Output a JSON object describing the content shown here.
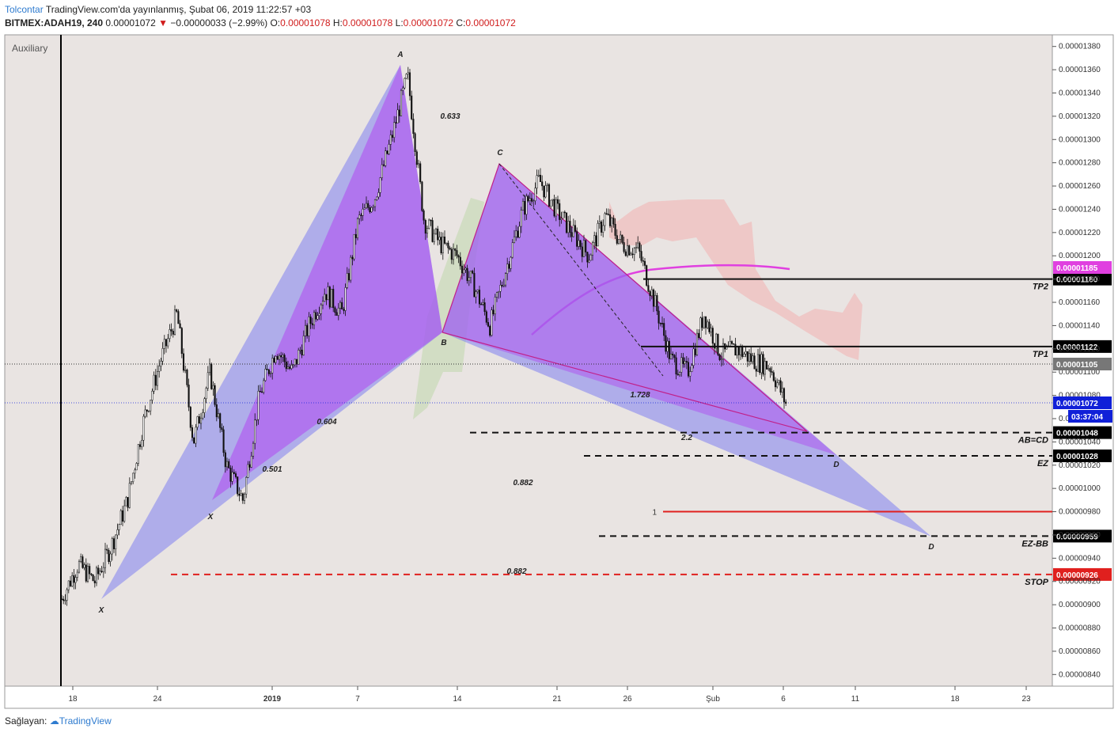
{
  "header": {
    "author": "Tolcontar",
    "published": "TradingView.com'da yayınlanmış, Şubat 06, 2019 11:22:57 +03",
    "symbol": "BITMEX:ADAH19, 240",
    "last": "0.00001072",
    "change_arrow": "▼",
    "change": "−0.00000033 (−2.99%)",
    "o_label": "O:",
    "o": "0.00001078",
    "h_label": "H:",
    "h": "0.00001078",
    "l_label": "L:",
    "l": "0.00001072",
    "c_label": "C:",
    "c": "0.00001072"
  },
  "pane_label": "Auxiliary",
  "footer": {
    "prefix": "Sağlayan:",
    "brand": "TradingView"
  },
  "chart_data": {
    "type": "candlestick",
    "ylim": [
      8.3e-06,
      1.39e-05
    ],
    "yticks": [
      "0.00000840",
      "0.00000860",
      "0.00000880",
      "0.00000900",
      "0.00000920",
      "0.00000940",
      "0.00000960",
      "0.00000980",
      "0.00001000",
      "0.00001020",
      "0.00001040",
      "0.00001060",
      "0.00001080",
      "0.00001100",
      "0.00001120",
      "0.00001140",
      "0.00001160",
      "0.00001180",
      "0.00001200",
      "0.00001220",
      "0.00001240",
      "0.00001260",
      "0.00001280",
      "0.00001300",
      "0.00001320",
      "0.00001340",
      "0.00001360",
      "0.00001380"
    ],
    "xticks": [
      {
        "label": "18",
        "bold": false
      },
      {
        "label": "24",
        "bold": false
      },
      {
        "label": "2019",
        "bold": true
      },
      {
        "label": "7",
        "bold": false
      },
      {
        "label": "14",
        "bold": false
      },
      {
        "label": "21",
        "bold": false
      },
      {
        "label": "26",
        "bold": false
      },
      {
        "label": "Şub",
        "bold": false
      },
      {
        "label": "6",
        "bold": false
      },
      {
        "label": "11",
        "bold": false
      },
      {
        "label": "18",
        "bold": false
      },
      {
        "label": "23",
        "bold": false
      }
    ],
    "price_path": [
      {
        "t": 0,
        "v": 9.05e-06
      },
      {
        "t": 1,
        "v": 9.35e-06
      },
      {
        "t": 2,
        "v": 9.2e-06
      },
      {
        "t": 3,
        "v": 9.5e-06
      },
      {
        "t": 4,
        "v": 9.9e-06
      },
      {
        "t": 5,
        "v": 1.06e-05
      },
      {
        "t": 6,
        "v": 1.11e-05
      },
      {
        "t": 7,
        "v": 1.15e-05
      },
      {
        "t": 8,
        "v": 1.04e-05
      },
      {
        "t": 9,
        "v": 1.1e-05
      },
      {
        "t": 10,
        "v": 1.02e-05
      },
      {
        "t": 11,
        "v": 9.9e-06
      },
      {
        "t": 12,
        "v": 1.08e-05
      },
      {
        "t": 13,
        "v": 1.12e-05
      },
      {
        "t": 14,
        "v": 1.1e-05
      },
      {
        "t": 15,
        "v": 1.14e-05
      },
      {
        "t": 16,
        "v": 1.17e-05
      },
      {
        "t": 17,
        "v": 1.15e-05
      },
      {
        "t": 18,
        "v": 1.23e-05
      },
      {
        "t": 19,
        "v": 1.25e-05
      },
      {
        "t": 20,
        "v": 1.3e-05
      },
      {
        "t": 21,
        "v": 1.355e-05
      },
      {
        "t": 22,
        "v": 1.23e-05
      },
      {
        "t": 23,
        "v": 1.21e-05
      },
      {
        "t": 24,
        "v": 1.2e-05
      },
      {
        "t": 25,
        "v": 1.175e-05
      },
      {
        "t": 26,
        "v": 1.14e-05
      },
      {
        "t": 27,
        "v": 1.19e-05
      },
      {
        "t": 28,
        "v": 1.24e-05
      },
      {
        "t": 29,
        "v": 1.265e-05
      },
      {
        "t": 30,
        "v": 1.24e-05
      },
      {
        "t": 31,
        "v": 1.22e-05
      },
      {
        "t": 32,
        "v": 1.2e-05
      },
      {
        "t": 33,
        "v": 1.235e-05
      },
      {
        "t": 34,
        "v": 1.21e-05
      },
      {
        "t": 35,
        "v": 1.205e-05
      },
      {
        "t": 36,
        "v": 1.16e-05
      },
      {
        "t": 37,
        "v": 1.11e-05
      },
      {
        "t": 38,
        "v": 1.1e-05
      },
      {
        "t": 39,
        "v": 1.15e-05
      },
      {
        "t": 40,
        "v": 1.115e-05
      },
      {
        "t": 41,
        "v": 1.12e-05
      },
      {
        "t": 42,
        "v": 1.11e-05
      },
      {
        "t": 43,
        "v": 1.105e-05
      },
      {
        "t": 44,
        "v": 1.072e-05
      }
    ],
    "lines": [
      {
        "label": "TP2",
        "value": "0.00001180",
        "style": "solid",
        "color": "#111111"
      },
      {
        "label": "TP1",
        "value": "0.00001122",
        "style": "solid",
        "color": "#111111"
      },
      {
        "label": "AB=CD",
        "value": "0.00001048",
        "style": "dashed",
        "color": "#111111"
      },
      {
        "label": "EZ",
        "value": "0.00001028",
        "style": "dashed",
        "color": "#111111"
      },
      {
        "label": "EZ-BB",
        "value": "0.00000959",
        "style": "dashed",
        "color": "#111111"
      },
      {
        "label": "STOP",
        "value": "0.00000926",
        "style": "dashed",
        "color": "#e0201e"
      }
    ],
    "red_line": {
      "label": "1",
      "value": 9.8e-06
    },
    "badges": [
      {
        "text": "0.00001185",
        "color": "#e040e0"
      },
      {
        "text": "0.00001105",
        "color": "#777777"
      },
      {
        "text": "0.00001072",
        "color": "#1020d8"
      },
      {
        "text": "03:37:04",
        "color": "#1020d8"
      }
    ],
    "pattern_points": [
      {
        "label": "X",
        "value": 9.1e-06
      },
      {
        "label": "A",
        "value": 1.355e-05
      },
      {
        "label": "B",
        "value": 1.132e-05
      },
      {
        "label": "C",
        "value": 1.273e-05
      },
      {
        "label": "D",
        "value": 9.62e-06
      },
      {
        "label": "X",
        "value": 9.88e-06
      },
      {
        "label": "D",
        "value": 1.028e-05
      }
    ],
    "ratios": [
      "0.633",
      "0.604",
      "0.501",
      "0.882",
      "0.882",
      "1.728",
      "2.2"
    ]
  }
}
